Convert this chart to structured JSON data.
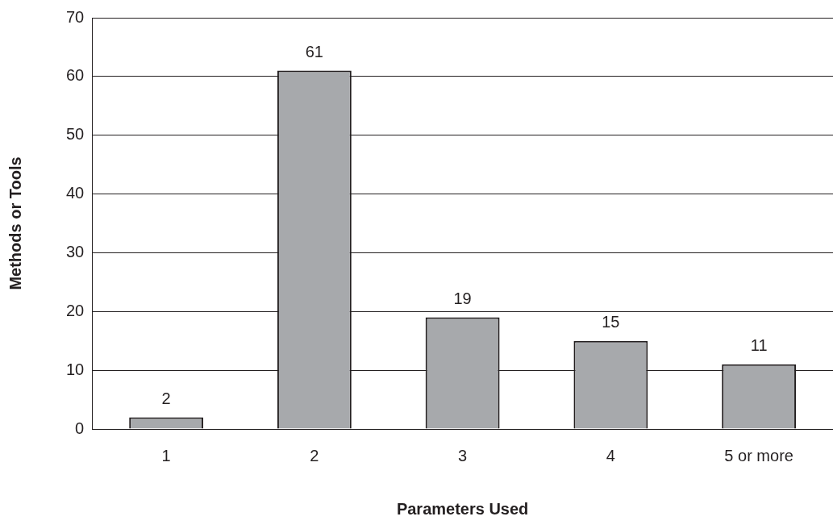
{
  "chart_data": {
    "type": "bar",
    "xlabel": "Parameters Used",
    "ylabel": "Methods or Tools",
    "categories": [
      "1",
      "2",
      "3",
      "4",
      "5 or more"
    ],
    "values": [
      2,
      61,
      19,
      15,
      11
    ],
    "color": "#a7a9ac",
    "ylim": [
      0,
      70
    ],
    "yticks": [
      0,
      10,
      20,
      30,
      40,
      50,
      60,
      70
    ],
    "grid": "y",
    "data_labels": true
  }
}
